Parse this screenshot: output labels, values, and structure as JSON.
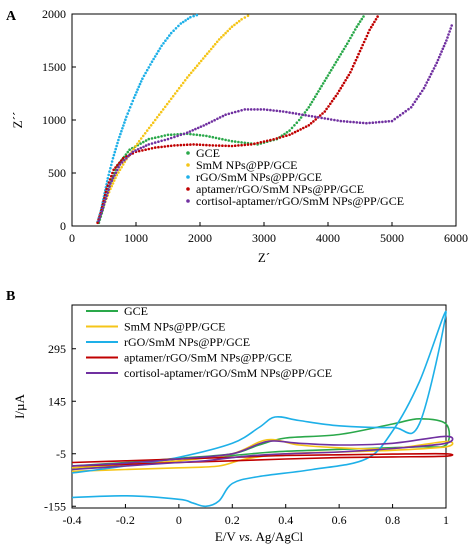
{
  "chart_data": [
    {
      "panel": "A",
      "type": "scatter",
      "xlabel": "Z´",
      "ylabel": "Z´´",
      "xlim": [
        0,
        6000
      ],
      "ylim": [
        0,
        2000
      ],
      "x_ticks": [
        "0",
        "1000",
        "2000",
        "3000",
        "4000",
        "5000",
        "6000"
      ],
      "y_ticks": [
        "0",
        "500",
        "1000",
        "1500",
        "2000"
      ],
      "grid": false,
      "legend_position": "bottom-right",
      "series": [
        {
          "name": "GCE",
          "color": "#2aa84a",
          "x": [
            420,
            480,
            560,
            700,
            900,
            1200,
            1500,
            1800,
            2100,
            2500,
            2900,
            3200,
            3400,
            3550,
            3700,
            3900,
            4100,
            4300,
            4450,
            4580
          ],
          "y": [
            30,
            150,
            350,
            560,
            720,
            820,
            860,
            870,
            850,
            800,
            770,
            820,
            900,
            1000,
            1120,
            1320,
            1520,
            1720,
            1880,
            2000
          ]
        },
        {
          "name": "SmM NPs@PP/GCE",
          "color": "#f5c518",
          "x": [
            400,
            450,
            520,
            600,
            700,
            850,
            1050,
            1300,
            1550,
            1800,
            2050,
            2300,
            2500,
            2650,
            2800
          ],
          "y": [
            40,
            120,
            230,
            350,
            480,
            630,
            800,
            1000,
            1200,
            1400,
            1580,
            1760,
            1880,
            1950,
            2000
          ]
        },
        {
          "name": "rGO/SmM NPs@PP/GCE",
          "color": "#1eb0e8",
          "x": [
            400,
            450,
            500,
            560,
            640,
            740,
            850,
            970,
            1100,
            1250,
            1400,
            1550,
            1700,
            1850,
            2000
          ],
          "y": [
            40,
            140,
            280,
            450,
            640,
            840,
            1030,
            1210,
            1390,
            1550,
            1700,
            1820,
            1910,
            1970,
            2000
          ]
        },
        {
          "name": "aptamer/rGO/SmM NPs@PP/GCE",
          "color": "#c00000",
          "x": [
            400,
            460,
            540,
            650,
            800,
            1000,
            1300,
            1600,
            1900,
            2200,
            2500,
            2800,
            3100,
            3400,
            3700,
            3950,
            4150,
            4350,
            4500,
            4650,
            4800
          ],
          "y": [
            30,
            150,
            350,
            530,
            640,
            700,
            740,
            760,
            770,
            760,
            755,
            770,
            810,
            860,
            950,
            1080,
            1250,
            1450,
            1650,
            1850,
            2000
          ]
        },
        {
          "name": "cortisol-aptamer/rGO/SmM NPs@PP/GCE",
          "color": "#7030a0",
          "x": [
            420,
            500,
            600,
            750,
            950,
            1200,
            1500,
            1800,
            2100,
            2400,
            2700,
            3000,
            3300,
            3600,
            3900,
            4200,
            4600,
            5000,
            5300,
            5500,
            5700,
            5850,
            5950
          ],
          "y": [
            50,
            200,
            400,
            580,
            700,
            770,
            820,
            880,
            960,
            1050,
            1100,
            1100,
            1080,
            1050,
            1020,
            990,
            970,
            990,
            1120,
            1300,
            1540,
            1750,
            1920
          ]
        }
      ]
    },
    {
      "panel": "B",
      "type": "line",
      "xlabel": "E/V vs. Ag/AgCl",
      "xlabel_parts": [
        "E/V ",
        "vs.",
        " Ag/AgCl"
      ],
      "ylabel": "I/µA",
      "xlim": [
        -0.4,
        1.0
      ],
      "ylim": [
        -160,
        420
      ],
      "x_ticks": [
        "-0.4",
        "-0.2",
        "0",
        "0.2",
        "0.4",
        "0.6",
        "0.8",
        "1"
      ],
      "y_ticks": [
        "-155",
        "-5",
        "145",
        "295"
      ],
      "y_tick_values": [
        -155,
        -5,
        145,
        295
      ],
      "grid": false,
      "legend_position": "top-left",
      "series": [
        {
          "name": "GCE",
          "color": "#2aa84a",
          "x": [
            -0.4,
            -0.2,
            0.0,
            0.2,
            0.3,
            0.4,
            0.6,
            0.8,
            0.9,
            1.0,
            1.0,
            0.9,
            0.7,
            0.5,
            0.35,
            0.2,
            0.0,
            -0.2,
            -0.4
          ],
          "y": [
            -40,
            -30,
            -18,
            -5,
            20,
            40,
            50,
            80,
            95,
            80,
            20,
            15,
            10,
            5,
            0,
            -10,
            -20,
            -35,
            -50
          ]
        },
        {
          "name": "SmM NPs@PP/GCE",
          "color": "#f5c518",
          "x": [
            -0.4,
            -0.2,
            0.0,
            0.2,
            0.33,
            0.45,
            0.6,
            0.8,
            1.0,
            1.0,
            0.8,
            0.6,
            0.4,
            0.25,
            0.15,
            0.0,
            -0.2,
            -0.4
          ],
          "y": [
            -45,
            -35,
            -25,
            -5,
            35,
            20,
            12,
            10,
            30,
            15,
            5,
            0,
            -5,
            -20,
            -40,
            -45,
            -50,
            -55
          ]
        },
        {
          "name": "rGO/SmM NPs@PP/GCE",
          "color": "#1eb0e8",
          "x": [
            -0.4,
            -0.2,
            0.0,
            0.2,
            0.3,
            0.36,
            0.45,
            0.6,
            0.8,
            0.9,
            1.0,
            0.9,
            0.8,
            0.7,
            0.5,
            0.3,
            0.2,
            0.15,
            0.1,
            0.05,
            0.0,
            -0.2,
            -0.4
          ],
          "y": [
            -60,
            -40,
            -15,
            25,
            70,
            100,
            90,
            75,
            70,
            80,
            400,
            200,
            60,
            -20,
            -50,
            -70,
            -90,
            -140,
            -155,
            -145,
            -135,
            -125,
            -130
          ]
        },
        {
          "name": "aptamer/rGO/SmM NPs@PP/GCE",
          "color": "#c00000",
          "x": [
            -0.4,
            -0.2,
            0.0,
            0.2,
            0.4,
            0.6,
            0.8,
            1.0,
            1.0,
            0.8,
            0.6,
            0.4,
            0.2,
            0.0,
            -0.2,
            -0.4
          ],
          "y": [
            -30,
            -25,
            -20,
            -15,
            -10,
            -8,
            -6,
            -5,
            -12,
            -14,
            -16,
            -20,
            -25,
            -30,
            -35,
            -40
          ]
        },
        {
          "name": "cortisol-aptamer/rGO/SmM NPs@PP/GCE",
          "color": "#7030a0",
          "x": [
            -0.4,
            -0.2,
            0.0,
            0.2,
            0.33,
            0.45,
            0.6,
            0.8,
            1.0,
            1.0,
            0.8,
            0.6,
            0.4,
            0.25,
            0.1,
            0.0,
            -0.2,
            -0.4
          ],
          "y": [
            -40,
            -32,
            -20,
            -5,
            30,
            25,
            20,
            25,
            45,
            25,
            10,
            0,
            -5,
            -12,
            -25,
            -30,
            -40,
            -50
          ]
        }
      ]
    }
  ]
}
